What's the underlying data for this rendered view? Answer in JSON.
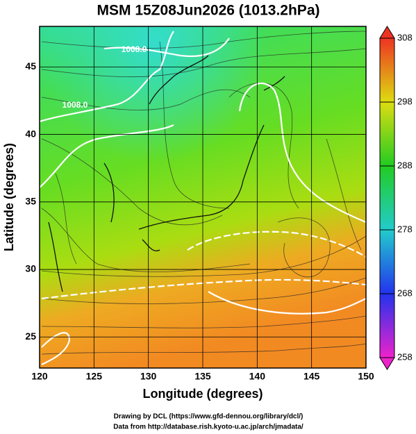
{
  "title": "MSM 15Z08Jun2026 (1013.2hPa)",
  "axes": {
    "xlabel": "Longitude (degrees)",
    "ylabel": "Latitude  (degrees)",
    "xlim": [
      120,
      150
    ],
    "ylim": [
      22.7,
      48
    ],
    "xticks": [
      120,
      125,
      130,
      135,
      140,
      145,
      150
    ],
    "yticks": [
      25,
      30,
      35,
      40,
      45
    ]
  },
  "colorbar": {
    "lim": [
      258,
      308
    ],
    "ticks": [
      258,
      268,
      278,
      288,
      298,
      308
    ]
  },
  "contour_labels": [
    "1008.0",
    "1008.0"
  ],
  "footer": [
    "Drawing by DCL (https://www.gfd-dennou.org/library/dcl/)",
    "Data from http://database.rish.kyoto-u.ac.jp/arch/jmadata/"
  ]
}
